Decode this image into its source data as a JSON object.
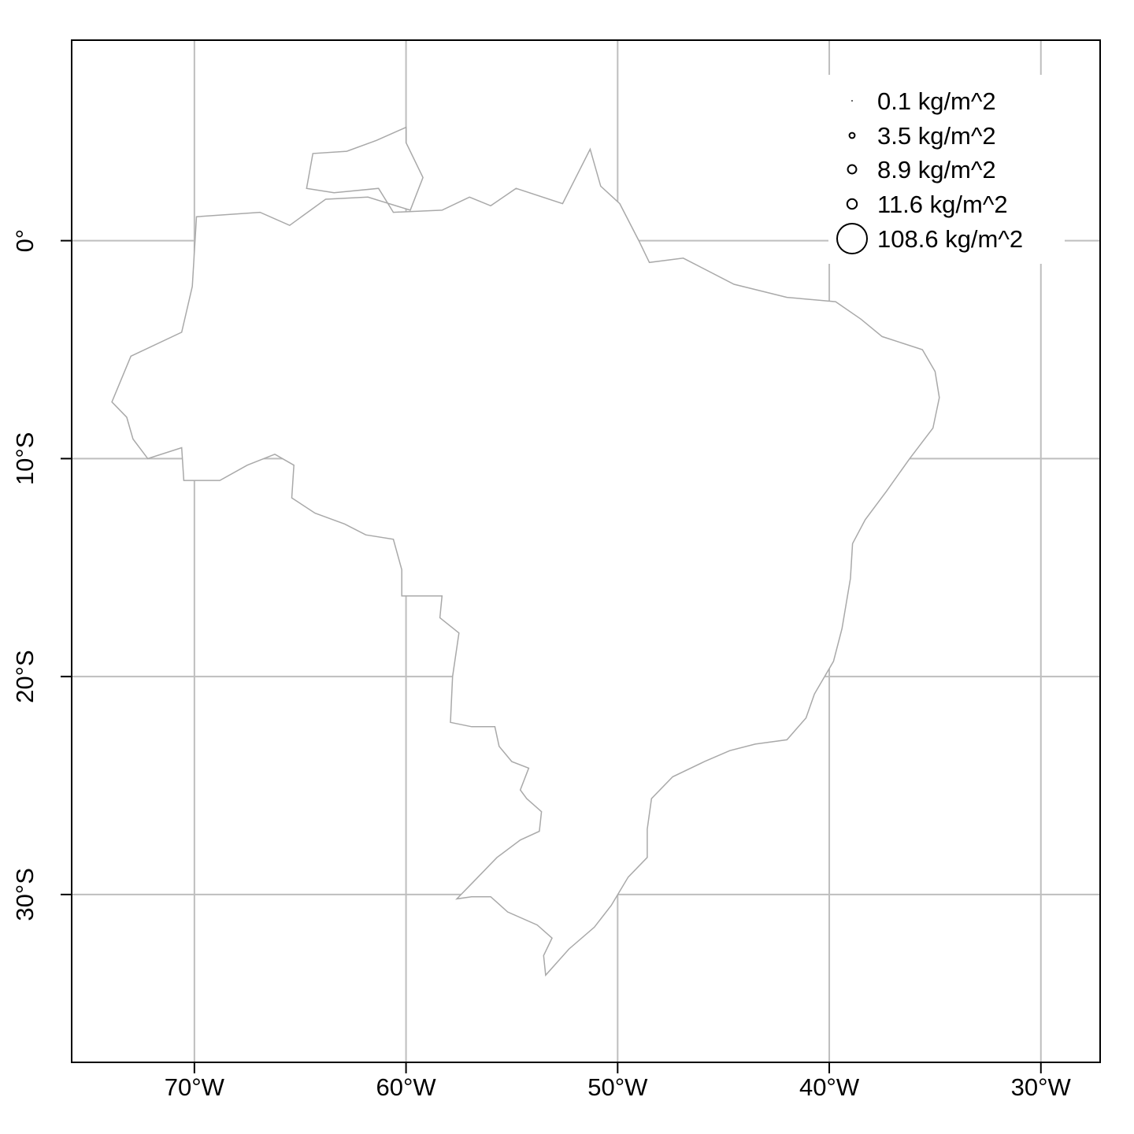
{
  "map": {
    "x_ticks": [
      {
        "lon": -70,
        "label": "70°W"
      },
      {
        "lon": -60,
        "label": "60°W"
      },
      {
        "lon": -50,
        "label": "50°W"
      },
      {
        "lon": -40,
        "label": "40°W"
      },
      {
        "lon": -30,
        "label": "30°W"
      }
    ],
    "y_ticks": [
      {
        "lat": 0,
        "label": "0°"
      },
      {
        "lat": -10,
        "label": "10°S"
      },
      {
        "lat": -20,
        "label": "20°S"
      },
      {
        "lat": -30,
        "label": "30°S"
      }
    ],
    "xlim": [
      -75.8,
      -27.2
    ],
    "ylim": [
      -37.7,
      9.2
    ],
    "grid": true,
    "colors": {
      "grid": "#bebebe",
      "border": "#a9a9a9",
      "points": "#000000",
      "frame": "#000000"
    },
    "legend": {
      "position": "top-right",
      "entries": [
        {
          "value": 0.1,
          "label": "0.1 kg/m^2"
        },
        {
          "value": 3.5,
          "label": "3.5 kg/m^2"
        },
        {
          "value": 8.9,
          "label": "8.9 kg/m^2"
        },
        {
          "value": 11.6,
          "label": "11.6 kg/m^2"
        },
        {
          "value": 108.6,
          "label": "108.6 kg/m^2"
        }
      ]
    },
    "outline": [
      [
        -73.9,
        -7.4
      ],
      [
        -73.0,
        -5.3
      ],
      [
        -70.6,
        -4.2
      ],
      [
        -70.1,
        -2.1
      ],
      [
        -69.9,
        1.1
      ],
      [
        -66.9,
        1.3
      ],
      [
        -65.5,
        0.7
      ],
      [
        -63.8,
        1.9
      ],
      [
        -61.8,
        2.0
      ],
      [
        -59.8,
        1.4
      ],
      [
        -59.2,
        2.9
      ],
      [
        -60.0,
        4.5
      ],
      [
        -60.0,
        5.2
      ],
      [
        -61.4,
        4.6
      ],
      [
        -62.8,
        4.1
      ],
      [
        -64.4,
        4.0
      ],
      [
        -64.7,
        2.4
      ],
      [
        -63.4,
        2.2
      ],
      [
        -61.3,
        2.4
      ],
      [
        -60.6,
        1.3
      ],
      [
        -58.3,
        1.4
      ],
      [
        -57.0,
        2.0
      ],
      [
        -56.0,
        1.6
      ],
      [
        -54.8,
        2.4
      ],
      [
        -52.6,
        1.7
      ],
      [
        -51.3,
        4.2
      ],
      [
        -50.8,
        2.5
      ],
      [
        -49.9,
        1.7
      ],
      [
        -49.0,
        0.0
      ],
      [
        -48.5,
        -1.0
      ],
      [
        -46.9,
        -0.8
      ],
      [
        -44.5,
        -2.0
      ],
      [
        -42.0,
        -2.6
      ],
      [
        -39.7,
        -2.8
      ],
      [
        -38.5,
        -3.6
      ],
      [
        -37.5,
        -4.4
      ],
      [
        -35.6,
        -5.0
      ],
      [
        -35.0,
        -6.0
      ],
      [
        -34.8,
        -7.2
      ],
      [
        -35.1,
        -8.6
      ],
      [
        -36.2,
        -10.0
      ],
      [
        -37.3,
        -11.5
      ],
      [
        -38.3,
        -12.8
      ],
      [
        -38.9,
        -13.9
      ],
      [
        -39.0,
        -15.5
      ],
      [
        -39.4,
        -17.8
      ],
      [
        -39.8,
        -19.3
      ],
      [
        -40.7,
        -20.8
      ],
      [
        -41.1,
        -21.9
      ],
      [
        -42.0,
        -22.9
      ],
      [
        -43.5,
        -23.1
      ],
      [
        -44.7,
        -23.4
      ],
      [
        -45.9,
        -23.9
      ],
      [
        -47.4,
        -24.6
      ],
      [
        -48.4,
        -25.6
      ],
      [
        -48.6,
        -27.0
      ],
      [
        -48.6,
        -28.3
      ],
      [
        -49.5,
        -29.2
      ],
      [
        -50.3,
        -30.5
      ],
      [
        -51.1,
        -31.5
      ],
      [
        -52.3,
        -32.5
      ],
      [
        -53.4,
        -33.7
      ],
      [
        -53.5,
        -32.8
      ],
      [
        -53.1,
        -32.0
      ],
      [
        -53.8,
        -31.4
      ],
      [
        -55.2,
        -30.8
      ],
      [
        -56.0,
        -30.1
      ],
      [
        -56.9,
        -30.1
      ],
      [
        -57.6,
        -30.2
      ],
      [
        -56.8,
        -29.4
      ],
      [
        -55.7,
        -28.3
      ],
      [
        -54.6,
        -27.5
      ],
      [
        -53.7,
        -27.1
      ],
      [
        -53.6,
        -26.2
      ],
      [
        -54.3,
        -25.6
      ],
      [
        -54.6,
        -25.2
      ],
      [
        -54.2,
        -24.2
      ],
      [
        -55.0,
        -23.9
      ],
      [
        -55.6,
        -23.2
      ],
      [
        -55.8,
        -22.3
      ],
      [
        -56.9,
        -22.3
      ],
      [
        -57.9,
        -22.1
      ],
      [
        -57.8,
        -20.0
      ],
      [
        -57.5,
        -18.0
      ],
      [
        -58.4,
        -17.3
      ],
      [
        -58.3,
        -16.3
      ],
      [
        -60.2,
        -16.3
      ],
      [
        -60.2,
        -15.1
      ],
      [
        -60.6,
        -13.7
      ],
      [
        -61.9,
        -13.5
      ],
      [
        -62.9,
        -13.0
      ],
      [
        -64.3,
        -12.5
      ],
      [
        -65.4,
        -11.8
      ],
      [
        -65.3,
        -10.3
      ],
      [
        -66.2,
        -9.8
      ],
      [
        -67.5,
        -10.3
      ],
      [
        -68.8,
        -11.0
      ],
      [
        -70.5,
        -11.0
      ],
      [
        -70.6,
        -9.5
      ],
      [
        -72.2,
        -10.0
      ],
      [
        -72.9,
        -9.1
      ],
      [
        -73.2,
        -8.1
      ],
      [
        -73.9,
        -7.4
      ]
    ],
    "sites": [
      {
        "lon": -38.9,
        "lat": 2.4,
        "value": 0.1
      }
    ]
  }
}
